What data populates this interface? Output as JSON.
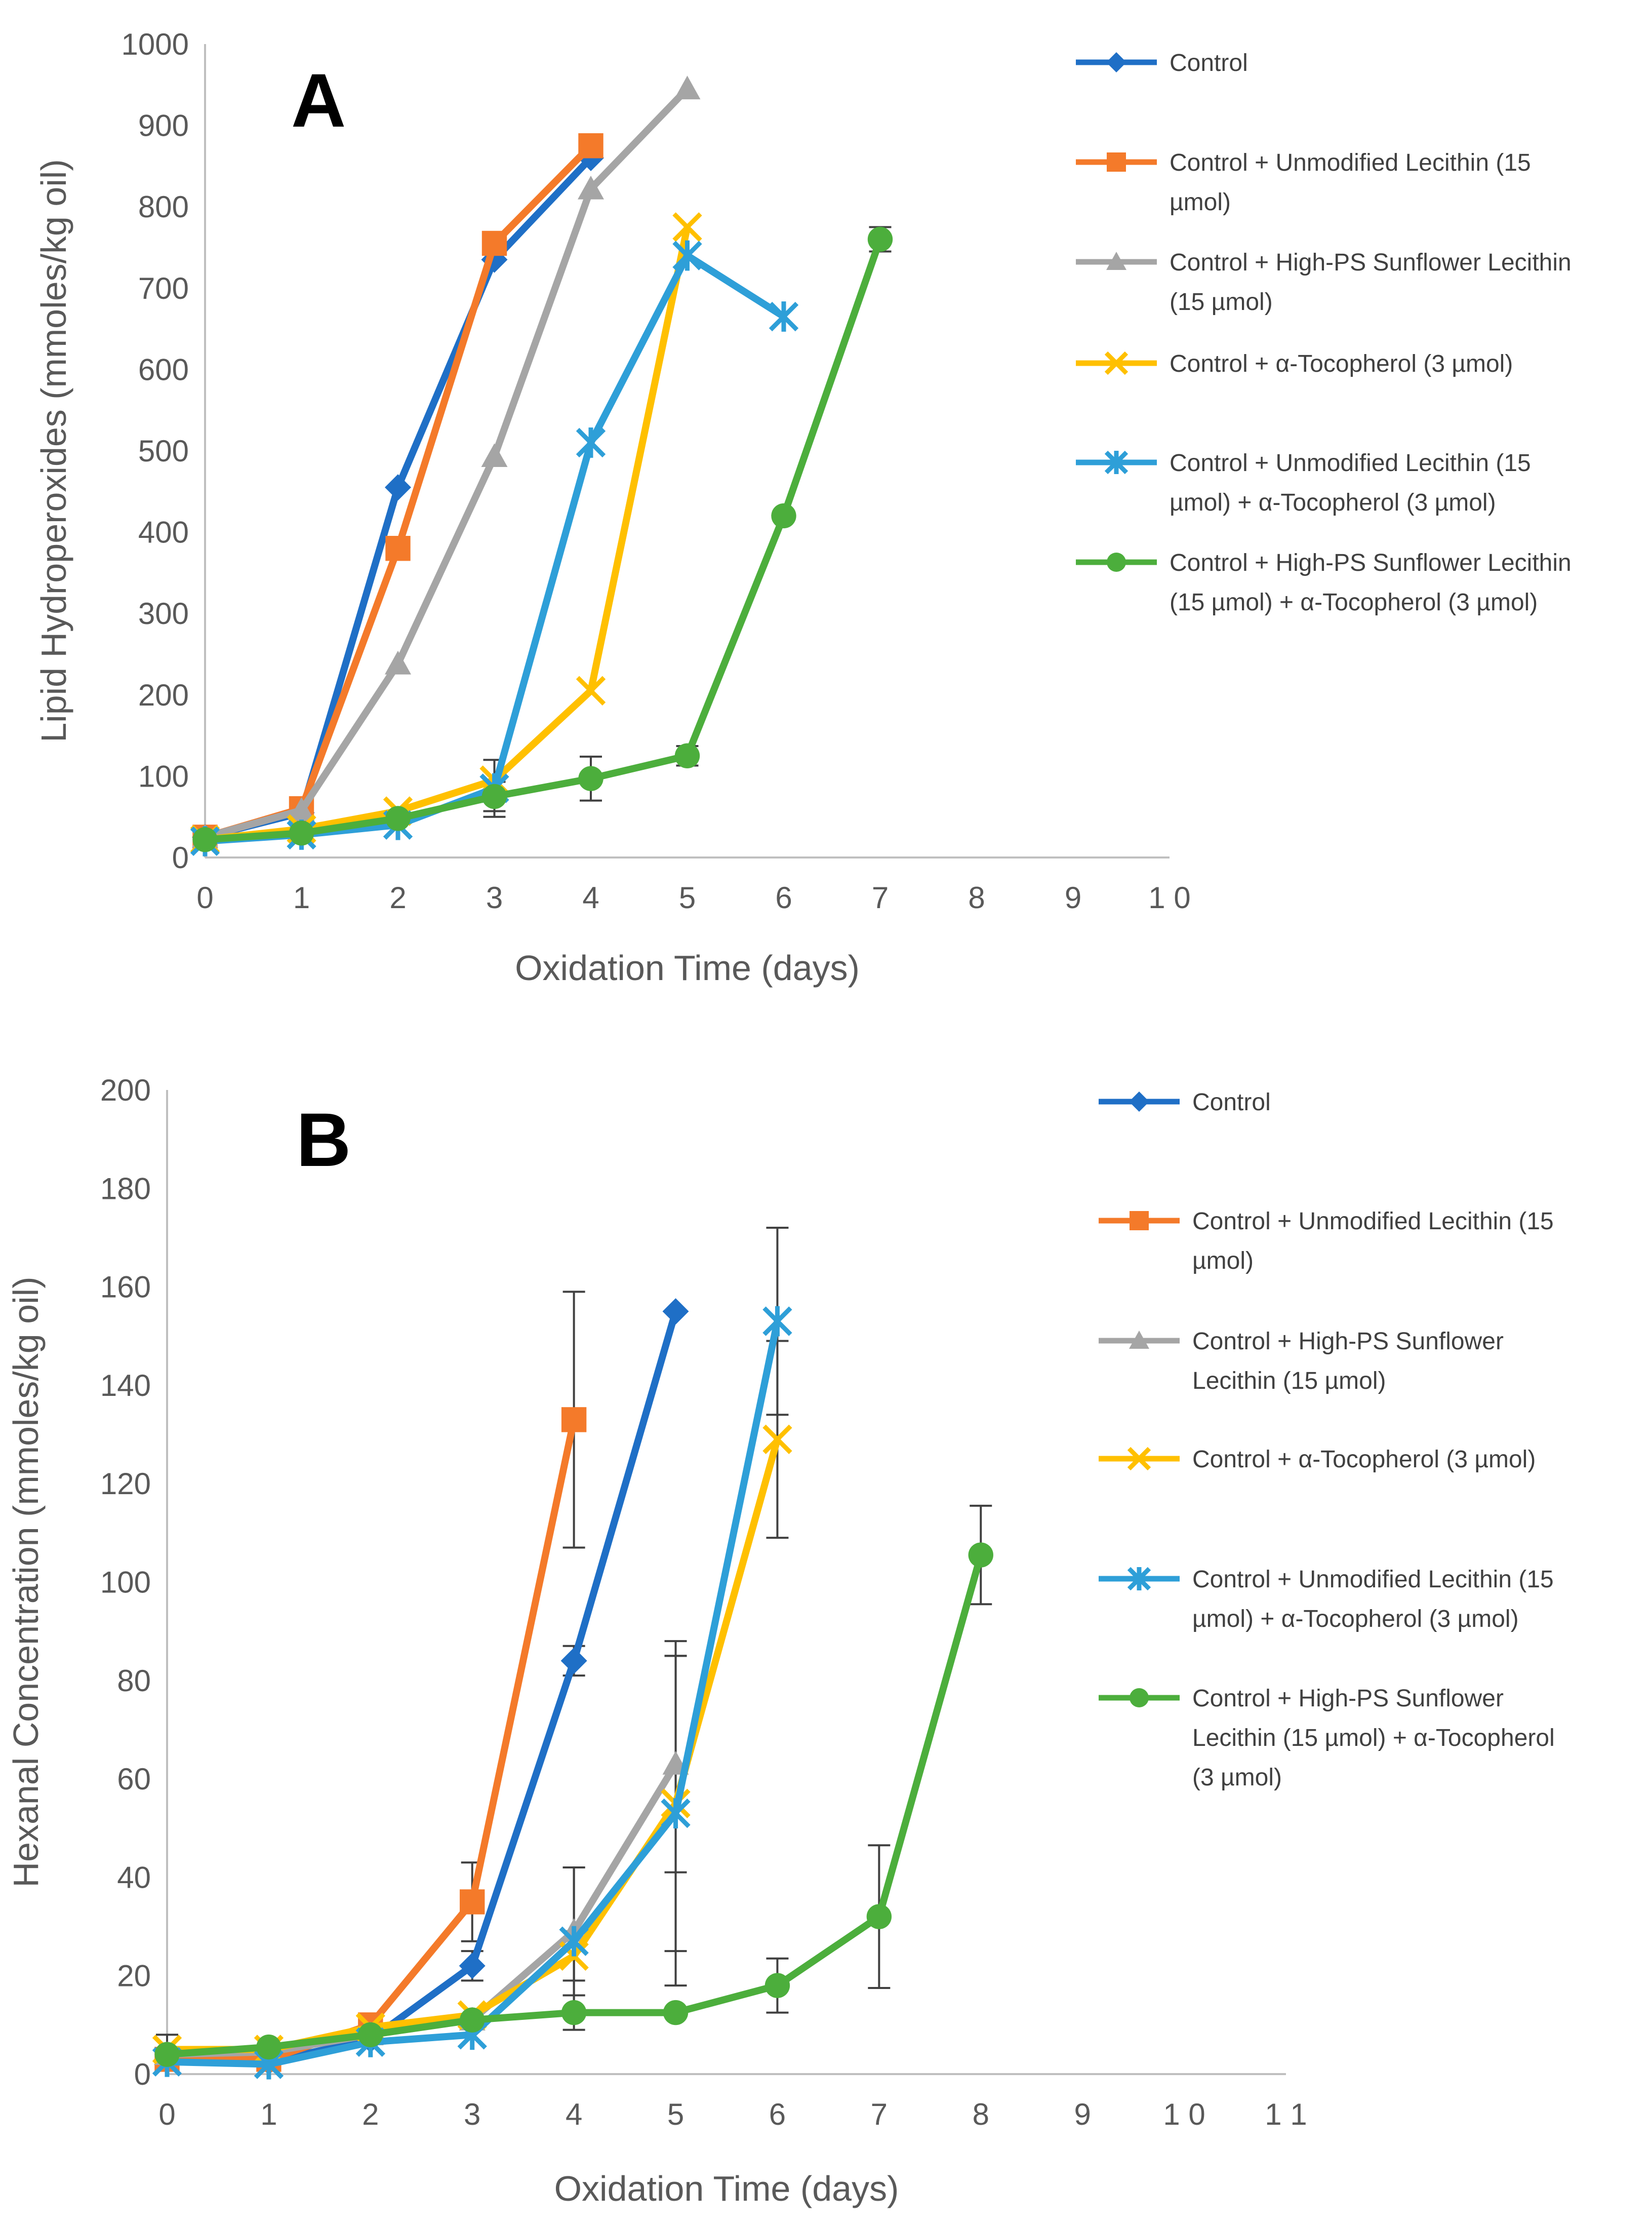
{
  "chart_data": [
    {
      "type": "line",
      "panel_label": "A",
      "title": "",
      "xlabel": "Oxidation Time (days)",
      "ylabel": "Lipid Hydroperoxides (mmoles/kg oil)",
      "xlim": [
        0,
        10
      ],
      "ylim": [
        0,
        1000
      ],
      "x_ticks": [
        "0",
        "1",
        "2",
        "3",
        "4",
        "5",
        "6",
        "7",
        "8",
        "9",
        "1 0"
      ],
      "y_ticks": [
        "0",
        "100",
        "200",
        "300",
        "400",
        "500",
        "600",
        "700",
        "800",
        "900",
        "1000"
      ],
      "grid": false,
      "legend_position": "right",
      "series": [
        {
          "name": "Control",
          "color": "#1f6fc6",
          "marker": "diamond",
          "points": [
            [
              0,
              25
            ],
            [
              1,
              55
            ],
            [
              2,
              455
            ],
            [
              3,
              735
            ],
            [
              4,
              860
            ]
          ],
          "error": []
        },
        {
          "name": "Control + Unmodified Lecithin (15 µmol)",
          "color": "#f47a2a",
          "marker": "square",
          "points": [
            [
              0,
              25
            ],
            [
              1,
              60
            ],
            [
              2,
              380
            ],
            [
              3,
              755
            ],
            [
              4,
              875
            ]
          ],
          "error": []
        },
        {
          "name": "Control + High-PS Sunflower Lecithin (15 µmol)",
          "color": "#a5a5a5",
          "marker": "triangle",
          "points": [
            [
              0,
              25
            ],
            [
              1,
              58
            ],
            [
              2,
              238
            ],
            [
              3,
              493
            ],
            [
              4,
              822
            ],
            [
              5,
              945
            ]
          ],
          "error": []
        },
        {
          "name": "Control + α-Tocopherol (3 µmol)",
          "color": "#ffc000",
          "marker": "x",
          "points": [
            [
              0,
              22
            ],
            [
              1,
              35
            ],
            [
              2,
              57
            ],
            [
              3,
              95
            ],
            [
              4,
              205
            ],
            [
              5,
              775
            ]
          ],
          "error": []
        },
        {
          "name": "Control + Unmodified Lecithin (15 µmol) + α-Tocopherol (3 µmol)",
          "color": "#2e9fd8",
          "marker": "star",
          "points": [
            [
              0,
              20
            ],
            [
              1,
              28
            ],
            [
              2,
              40
            ],
            [
              3,
              85
            ],
            [
              4,
              510
            ],
            [
              5,
              740
            ],
            [
              6,
              665
            ]
          ],
          "error": [
            0,
            0,
            0,
            35,
            0,
            0,
            0
          ]
        },
        {
          "name": "Control + High-PS Sunflower Lecithin (15 µmol) + α-Tocopherol (3 µmol)",
          "color": "#4cae3c",
          "marker": "circle",
          "points": [
            [
              0,
              22
            ],
            [
              1,
              30
            ],
            [
              2,
              48
            ],
            [
              3,
              75
            ],
            [
              4,
              97
            ],
            [
              5,
              125
            ],
            [
              6,
              420
            ],
            [
              7,
              760
            ]
          ],
          "error": [
            0,
            0,
            0,
            18,
            27,
            12,
            0,
            15
          ]
        }
      ]
    },
    {
      "type": "line",
      "panel_label": "B",
      "title": "",
      "xlabel": "Oxidation Time (days)",
      "ylabel": "Hexanal Concentration (mmoles/kg oil)",
      "xlim": [
        0,
        11
      ],
      "ylim": [
        0,
        200
      ],
      "x_ticks": [
        "0",
        "1",
        "2",
        "3",
        "4",
        "5",
        "6",
        "7",
        "8",
        "9",
        "1 0",
        "1 1"
      ],
      "y_ticks": [
        "0",
        "20",
        "40",
        "60",
        "80",
        "100",
        "120",
        "140",
        "160",
        "180",
        "200"
      ],
      "grid": false,
      "legend_position": "right",
      "series": [
        {
          "name": "Control",
          "color": "#1f6fc6",
          "marker": "diamond",
          "points": [
            [
              0,
              3
            ],
            [
              1,
              2.5
            ],
            [
              2,
              7
            ],
            [
              3,
              22
            ],
            [
              4,
              84
            ],
            [
              5,
              155
            ]
          ],
          "error": [
            0,
            0,
            0,
            3,
            3,
            0
          ]
        },
        {
          "name": "Control + Unmodified Lecithin (15 µmol)",
          "color": "#f47a2a",
          "marker": "square",
          "points": [
            [
              0,
              3
            ],
            [
              1,
              3
            ],
            [
              2,
              10
            ],
            [
              3,
              35
            ],
            [
              4,
              133
            ]
          ],
          "error": [
            0,
            0,
            0,
            8,
            26
          ]
        },
        {
          "name": "Control + High-PS Sunflower Lecithin (15 µmol)",
          "color": "#a5a5a5",
          "marker": "triangle",
          "points": [
            [
              0,
              4
            ],
            [
              1,
              4.5
            ],
            [
              2,
              8
            ],
            [
              3,
              11
            ],
            [
              4,
              29
            ],
            [
              5,
              63
            ]
          ],
          "error": [
            0,
            0,
            0,
            0,
            13,
            22
          ]
        },
        {
          "name": "Control + α-Tocopherol (3 µmol)",
          "color": "#ffc000",
          "marker": "x",
          "points": [
            [
              0,
              5
            ],
            [
              1,
              5
            ],
            [
              2,
              9.5
            ],
            [
              3,
              12
            ],
            [
              4,
              24
            ],
            [
              5,
              55
            ],
            [
              6,
              129
            ]
          ],
          "error": [
            3,
            0,
            0,
            0,
            5,
            30,
            20
          ]
        },
        {
          "name": "Control + Unmodified Lecithin (15 µmol) + α-Tocopherol (3 µmol)",
          "color": "#2e9fd8",
          "marker": "star",
          "points": [
            [
              0,
              2.5
            ],
            [
              1,
              2
            ],
            [
              2,
              6.5
            ],
            [
              3,
              8
            ],
            [
              4,
              27
            ],
            [
              5,
              53
            ],
            [
              6,
              153
            ]
          ],
          "error": [
            0,
            0,
            0,
            0,
            15,
            35,
            19
          ]
        },
        {
          "name": "Control + High-PS Sunflower Lecithin (15 µmol) + α-Tocopherol (3 µmol)",
          "color": "#4cae3c",
          "marker": "circle",
          "points": [
            [
              0,
              4
            ],
            [
              1,
              5.5
            ],
            [
              2,
              8
            ],
            [
              3,
              11
            ],
            [
              4,
              12.5
            ],
            [
              5,
              12.5
            ],
            [
              6,
              18
            ],
            [
              7,
              32
            ],
            [
              8,
              105.5
            ]
          ],
          "error": [
            0,
            0,
            0,
            0,
            3.5,
            0,
            5.5,
            14.5,
            10
          ]
        }
      ]
    }
  ],
  "legends": [
    {
      "entries": [
        {
          "lines": [
            "Control"
          ]
        },
        {
          "lines": [
            "Control + Unmodified Lecithin (15",
            "µmol)"
          ]
        },
        {
          "lines": [
            "Control + High-PS Sunflower Lecithin",
            "(15 µmol)"
          ]
        },
        {
          "lines": [
            "Control + α-Tocopherol (3 µmol)"
          ]
        },
        {
          "lines": [
            "Control + Unmodified Lecithin (15",
            "µmol) + α-Tocopherol (3 µmol)"
          ]
        },
        {
          "lines": [
            "Control + High-PS Sunflower Lecithin",
            "(15 µmol) + α-Tocopherol (3 µmol)"
          ]
        }
      ]
    },
    {
      "entries": [
        {
          "lines": [
            "Control"
          ]
        },
        {
          "lines": [
            "Control + Unmodified Lecithin (15",
            "µmol)"
          ]
        },
        {
          "lines": [
            "Control + High-PS Sunflower",
            "Lecithin (15 µmol)"
          ]
        },
        {
          "lines": [
            "Control + α-Tocopherol (3 µmol)"
          ]
        },
        {
          "lines": [
            "Control + Unmodified Lecithin (15",
            "µmol) + α-Tocopherol (3 µmol)"
          ]
        },
        {
          "lines": [
            "Control + High-PS Sunflower",
            "Lecithin (15 µmol) + α-Tocopherol",
            "(3 µmol)"
          ]
        }
      ]
    }
  ]
}
